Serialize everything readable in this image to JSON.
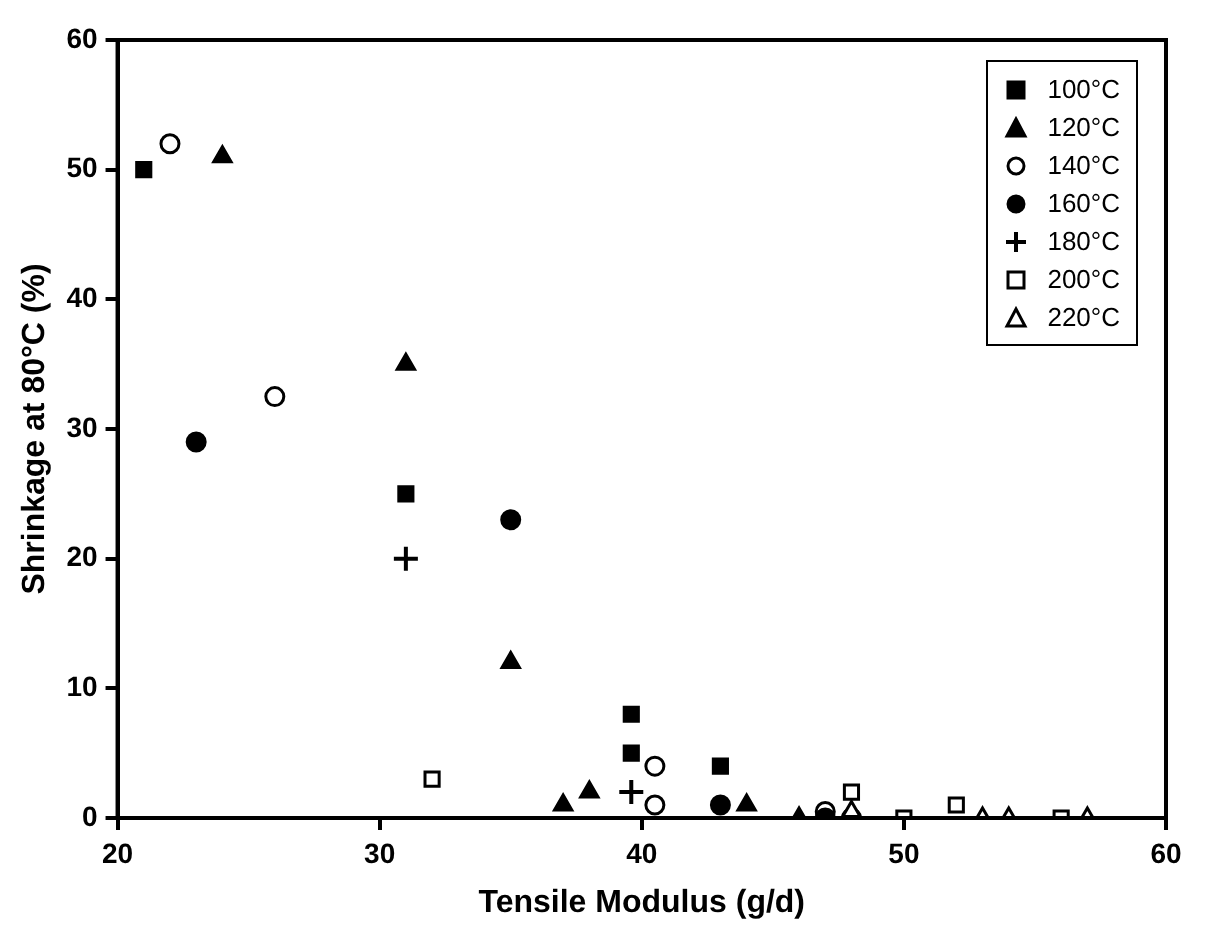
{
  "chart_data": {
    "type": "scatter",
    "xlabel": "Tensile Modulus (g/d)",
    "ylabel": "Shrinkage at 80°C (%)",
    "xlim": [
      20,
      60
    ],
    "xticks": [
      20,
      30,
      40,
      50,
      60
    ],
    "ylim": [
      0,
      60
    ],
    "yticks": [
      0,
      10,
      20,
      30,
      40,
      50,
      60
    ],
    "grid": false,
    "legend": "top right",
    "series": [
      {
        "name": "100°C",
        "color": "#000000",
        "marker": "square",
        "x": [
          21,
          31,
          39.6,
          39.6,
          43
        ],
        "values": [
          50,
          25,
          8,
          5,
          4
        ]
      },
      {
        "name": "120°C",
        "color": "#000000",
        "marker": "triangle",
        "x": [
          24,
          31,
          35,
          37,
          38,
          44,
          46
        ],
        "values": [
          51,
          35,
          12,
          1,
          2,
          1,
          0
        ]
      },
      {
        "name": "140°C",
        "color": "#000000",
        "marker": "circle-open",
        "x": [
          22,
          26,
          40.5,
          40.5,
          47
        ],
        "values": [
          52,
          32.5,
          4,
          1,
          0.5
        ]
      },
      {
        "name": "160°C",
        "color": "#000000",
        "marker": "circle",
        "x": [
          23,
          35,
          43,
          47,
          48
        ],
        "values": [
          29,
          23,
          1,
          0,
          0
        ]
      },
      {
        "name": "180°C",
        "color": "#000000",
        "marker": "cross",
        "x": [
          31,
          39.6
        ],
        "values": [
          20,
          2
        ]
      },
      {
        "name": "200°C",
        "color": "#000000",
        "marker": "square-open",
        "x": [
          32,
          48,
          50,
          52,
          56
        ],
        "values": [
          3,
          2,
          0,
          1,
          0
        ]
      },
      {
        "name": "220°C",
        "color": "#000000",
        "marker": "triangle-open",
        "x": [
          48,
          53,
          54,
          57
        ],
        "values": [
          0.5,
          0,
          0,
          0
        ]
      }
    ]
  }
}
